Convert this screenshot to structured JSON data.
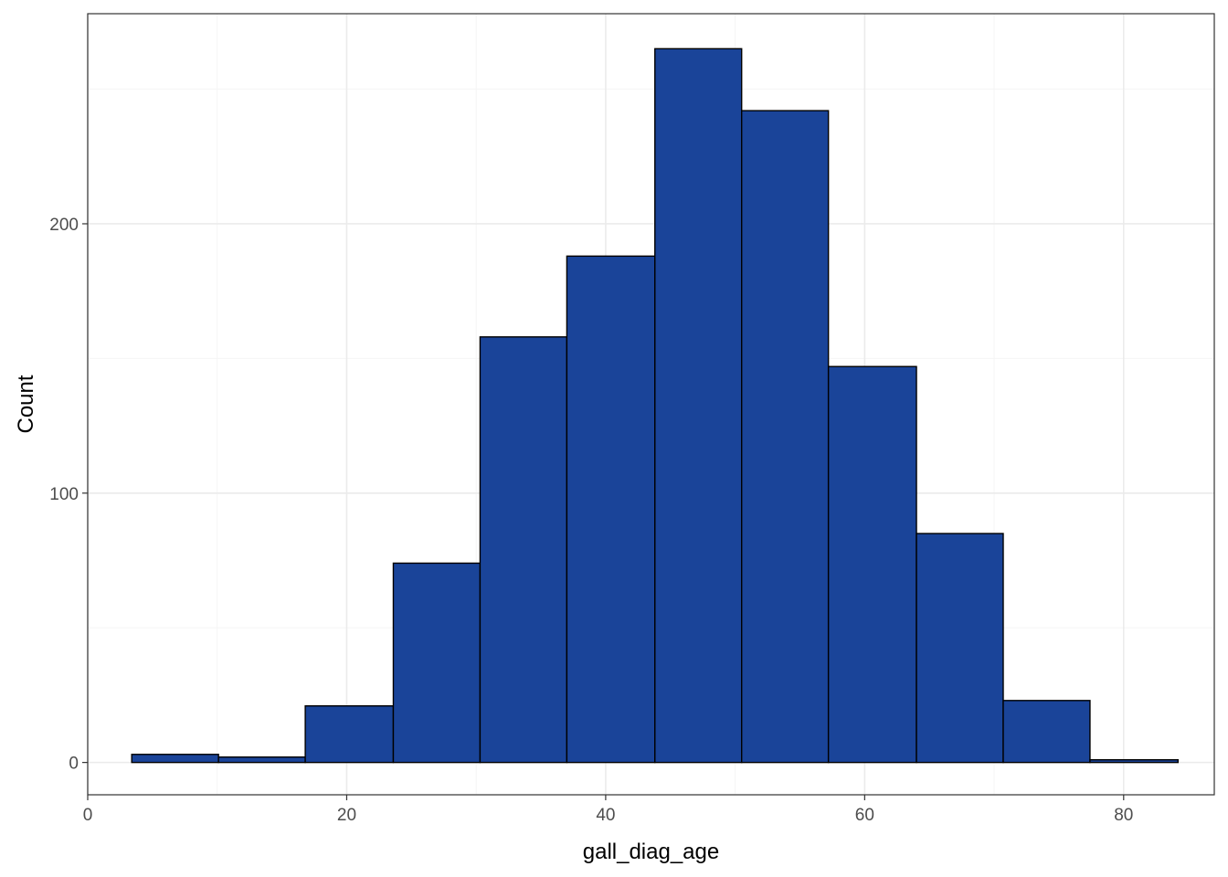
{
  "chart_data": {
    "type": "bar",
    "subtype": "histogram",
    "xlabel": "gall_diag_age",
    "ylabel": "Count",
    "xlim": [
      0,
      87
    ],
    "ylim": [
      -12,
      278
    ],
    "x_ticks": [
      0,
      20,
      40,
      60,
      80
    ],
    "y_ticks": [
      0,
      100,
      200
    ],
    "x_tick_labels": [
      "0",
      "20",
      "40",
      "60",
      "80"
    ],
    "y_tick_labels": [
      "0",
      "100",
      "200"
    ],
    "grid": true,
    "legend": "none",
    "bins": [
      {
        "x0": 3.4,
        "x1": 10.1,
        "count": 3
      },
      {
        "x0": 10.1,
        "x1": 16.8,
        "count": 2
      },
      {
        "x0": 16.8,
        "x1": 23.6,
        "count": 21
      },
      {
        "x0": 23.6,
        "x1": 30.3,
        "count": 74
      },
      {
        "x0": 30.3,
        "x1": 37.0,
        "count": 158
      },
      {
        "x0": 37.0,
        "x1": 43.8,
        "count": 188
      },
      {
        "x0": 43.8,
        "x1": 50.5,
        "count": 265
      },
      {
        "x0": 50.5,
        "x1": 57.2,
        "count": 242
      },
      {
        "x0": 57.2,
        "x1": 64.0,
        "count": 147
      },
      {
        "x0": 64.0,
        "x1": 70.7,
        "count": 85
      },
      {
        "x0": 70.7,
        "x1": 77.4,
        "count": 23
      },
      {
        "x0": 77.4,
        "x1": 84.2,
        "count": 1
      }
    ],
    "colors": {
      "fill": "#1A4499",
      "outline": "#000000",
      "panel_border": "#333333",
      "grid_major": "#EBEBEB",
      "grid_minor": "#F5F5F5",
      "tick_text": "#4D4D4D"
    }
  }
}
